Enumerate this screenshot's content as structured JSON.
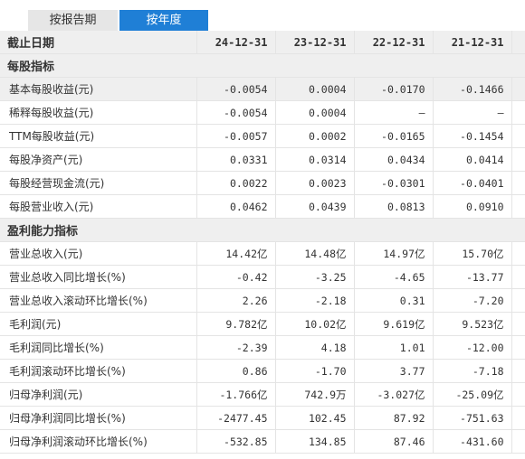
{
  "tabs": [
    {
      "label": "按报告期",
      "active": false
    },
    {
      "label": "按年度",
      "active": true
    }
  ],
  "header": {
    "first_col": "截止日期",
    "columns": [
      "24-12-31",
      "23-12-31",
      "22-12-31",
      "21-12-31"
    ]
  },
  "sections": [
    {
      "title": "每股指标",
      "rows": [
        {
          "label": "基本每股收益(元)",
          "values": [
            "-0.0054",
            "0.0004",
            "-0.0170",
            "-0.1466"
          ],
          "highlight": true
        },
        {
          "label": "稀释每股收益(元)",
          "values": [
            "-0.0054",
            "0.0004",
            "—",
            "—"
          ]
        },
        {
          "label": "TTM每股收益(元)",
          "values": [
            "-0.0057",
            "0.0002",
            "-0.0165",
            "-0.1454"
          ]
        },
        {
          "label": "每股净资产(元)",
          "values": [
            "0.0331",
            "0.0314",
            "0.0434",
            "0.0414"
          ]
        },
        {
          "label": "每股经营现金流(元)",
          "values": [
            "0.0022",
            "0.0023",
            "-0.0301",
            "-0.0401"
          ]
        },
        {
          "label": "每股营业收入(元)",
          "values": [
            "0.0462",
            "0.0439",
            "0.0813",
            "0.0910"
          ]
        }
      ]
    },
    {
      "title": "盈利能力指标",
      "rows": [
        {
          "label": "营业总收入(元)",
          "values": [
            "14.42亿",
            "14.48亿",
            "14.97亿",
            "15.70亿"
          ]
        },
        {
          "label": "营业总收入同比增长(%)",
          "values": [
            "-0.42",
            "-3.25",
            "-4.65",
            "-13.77"
          ]
        },
        {
          "label": "营业总收入滚动环比增长(%)",
          "values": [
            "2.26",
            "-2.18",
            "0.31",
            "-7.20"
          ]
        },
        {
          "label": "毛利润(元)",
          "values": [
            "9.782亿",
            "10.02亿",
            "9.619亿",
            "9.523亿"
          ]
        },
        {
          "label": "毛利润同比增长(%)",
          "values": [
            "-2.39",
            "4.18",
            "1.01",
            "-12.00"
          ]
        },
        {
          "label": "毛利润滚动环比增长(%)",
          "values": [
            "0.86",
            "-1.70",
            "3.77",
            "-7.18"
          ]
        },
        {
          "label": "归母净利润(元)",
          "values": [
            "-1.766亿",
            "742.9万",
            "-3.027亿",
            "-25.09亿"
          ]
        },
        {
          "label": "归母净利润同比增长(%)",
          "values": [
            "-2477.45",
            "102.45",
            "87.92",
            "-751.63"
          ]
        },
        {
          "label": "归母净利润滚动环比增长(%)",
          "values": [
            "-532.85",
            "134.85",
            "87.46",
            "-431.60"
          ]
        }
      ]
    }
  ]
}
